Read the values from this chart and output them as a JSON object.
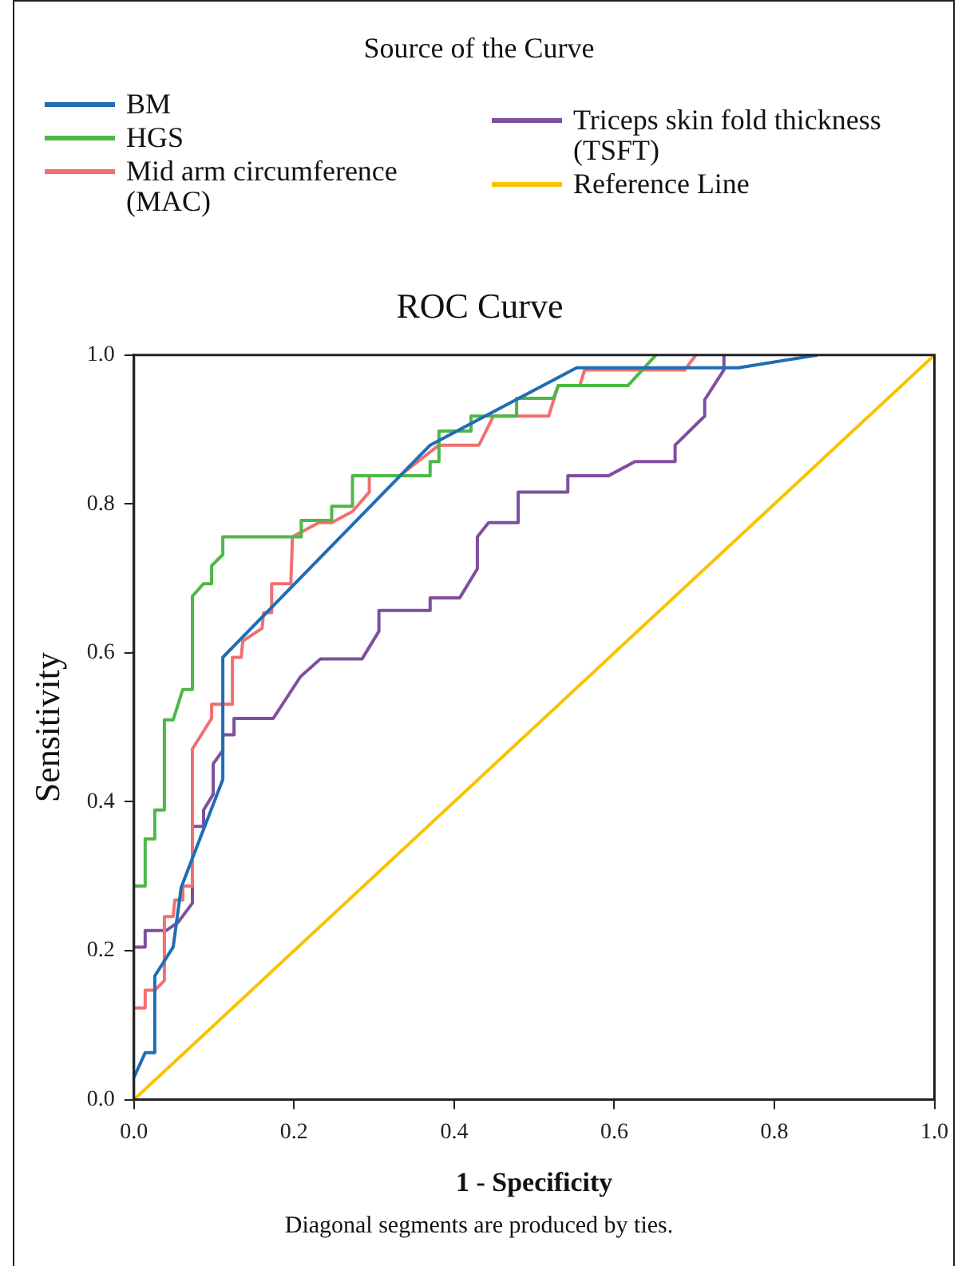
{
  "chart_data": {
    "type": "line",
    "title": "ROC Curve",
    "legend_title": "Source of the Curve",
    "legend": "top",
    "xlabel": "1 - Specificity",
    "ylabel": "Sensitivity",
    "marker": "none",
    "line_style": "solid",
    "xlim": [
      0,
      1
    ],
    "ylim": [
      0,
      1
    ],
    "xticks": [
      {
        "value": 0,
        "label": "0.0"
      },
      {
        "value": 0.2,
        "label": "0.2"
      },
      {
        "value": 0.4,
        "label": "0.4"
      },
      {
        "value": 0.6,
        "label": "0.6"
      },
      {
        "value": 0.8,
        "label": "0.8"
      },
      {
        "value": 1,
        "label": "1.0"
      }
    ],
    "yticks": [
      {
        "value": 0,
        "label": "0.0"
      },
      {
        "value": 0.2,
        "label": "0.2"
      },
      {
        "value": 0.4,
        "label": "0.4"
      },
      {
        "value": 0.6,
        "label": "0.6"
      },
      {
        "value": 0.8,
        "label": "0.8"
      },
      {
        "value": 1,
        "label": "1.0"
      }
    ],
    "series": [
      {
        "name": "BM",
        "color": "#1f6db5",
        "x": [
          0,
          0.014,
          0.026,
          0.026,
          0.049,
          0.059,
          0.111,
          0.111,
          0.37,
          0.553,
          0.755,
          0.854
        ],
        "values": [
          0.03,
          0.063,
          0.063,
          0.166,
          0.205,
          0.285,
          0.43,
          0.594,
          0.879,
          0.983,
          0.983,
          1
        ]
      },
      {
        "name": "HGS",
        "color": "#4db848",
        "x": [
          0,
          0.014,
          0.014,
          0.026,
          0.026,
          0.038,
          0.038,
          0.049,
          0.061,
          0.073,
          0.073,
          0.087,
          0.097,
          0.097,
          0.111,
          0.111,
          0.209,
          0.209,
          0.247,
          0.247,
          0.273,
          0.273,
          0.37,
          0.37,
          0.381,
          0.381,
          0.421,
          0.421,
          0.478,
          0.478,
          0.524,
          0.53,
          0.617,
          0.652
        ],
        "values": [
          0.287,
          0.287,
          0.35,
          0.35,
          0.389,
          0.389,
          0.51,
          0.51,
          0.551,
          0.551,
          0.676,
          0.693,
          0.693,
          0.717,
          0.732,
          0.756,
          0.756,
          0.778,
          0.778,
          0.797,
          0.797,
          0.838,
          0.838,
          0.857,
          0.857,
          0.898,
          0.898,
          0.918,
          0.918,
          0.942,
          0.942,
          0.959,
          0.959,
          1
        ]
      },
      {
        "name": "Mid arm circumference (MAC)",
        "color": "#f07070",
        "x": [
          0,
          0.014,
          0.014,
          0.026,
          0.038,
          0.038,
          0.049,
          0.051,
          0.061,
          0.061,
          0.073,
          0.073,
          0.097,
          0.097,
          0.123,
          0.123,
          0.134,
          0.136,
          0.16,
          0.162,
          0.172,
          0.172,
          0.196,
          0.198,
          0.231,
          0.247,
          0.273,
          0.294,
          0.294,
          0.332,
          0.381,
          0.431,
          0.449,
          0.518,
          0.53,
          0.557,
          0.563,
          0.688,
          0.702
        ],
        "values": [
          0.123,
          0.123,
          0.147,
          0.147,
          0.16,
          0.246,
          0.246,
          0.268,
          0.268,
          0.287,
          0.287,
          0.471,
          0.512,
          0.531,
          0.531,
          0.594,
          0.594,
          0.616,
          0.633,
          0.654,
          0.654,
          0.693,
          0.693,
          0.756,
          0.775,
          0.775,
          0.79,
          0.816,
          0.838,
          0.838,
          0.879,
          0.879,
          0.918,
          0.918,
          0.959,
          0.959,
          0.98,
          0.98,
          1
        ]
      },
      {
        "name": "Triceps skin fold thickness (TSFT)",
        "color": "#7f4f9f",
        "x": [
          0,
          0.014,
          0.014,
          0.04,
          0.055,
          0.073,
          0.073,
          0.087,
          0.087,
          0.099,
          0.099,
          0.111,
          0.111,
          0.125,
          0.125,
          0.174,
          0.208,
          0.233,
          0.285,
          0.306,
          0.306,
          0.37,
          0.37,
          0.407,
          0.429,
          0.429,
          0.443,
          0.48,
          0.48,
          0.542,
          0.542,
          0.593,
          0.626,
          0.676,
          0.676,
          0.713,
          0.713,
          0.737,
          0.737
        ],
        "values": [
          0.205,
          0.205,
          0.227,
          0.227,
          0.238,
          0.264,
          0.367,
          0.367,
          0.389,
          0.41,
          0.451,
          0.469,
          0.49,
          0.49,
          0.512,
          0.512,
          0.568,
          0.592,
          0.592,
          0.629,
          0.657,
          0.657,
          0.674,
          0.674,
          0.713,
          0.756,
          0.775,
          0.775,
          0.816,
          0.816,
          0.838,
          0.838,
          0.857,
          0.857,
          0.879,
          0.918,
          0.94,
          0.98,
          1
        ]
      },
      {
        "name": "Reference Line",
        "color": "#f8c300",
        "x": [
          0,
          1
        ],
        "values": [
          0,
          1
        ]
      }
    ],
    "annotations": [
      "Diagonal segments are produced by ties."
    ]
  }
}
